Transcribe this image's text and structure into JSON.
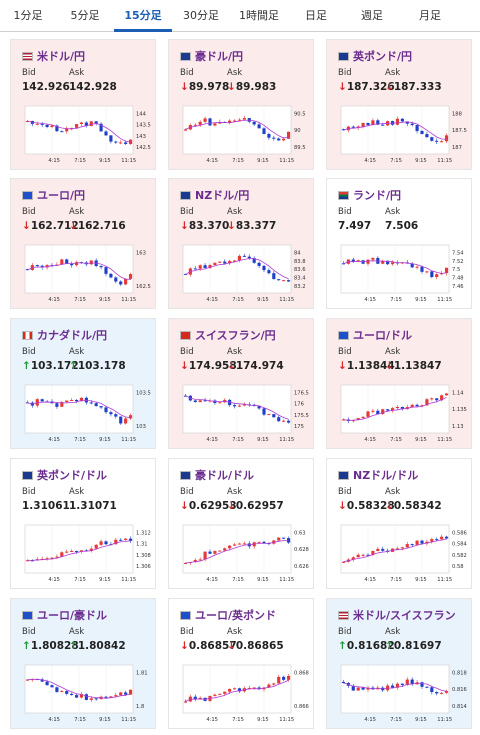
{
  "tabs": [
    {
      "label": "1分足",
      "active": false
    },
    {
      "label": "5分足",
      "active": false
    },
    {
      "label": "15分足",
      "active": true
    },
    {
      "label": "30分足",
      "active": false
    },
    {
      "label": "1時間足",
      "active": false
    },
    {
      "label": "日足",
      "active": false
    },
    {
      "label": "週足",
      "active": false
    },
    {
      "label": "月足",
      "active": false
    }
  ],
  "bid_label": "Bid",
  "ask_label": "Ask",
  "time_labels": [
    "4:15",
    "7:15",
    "9:15",
    "11:15"
  ],
  "colors": {
    "up": "#1d9a3a",
    "down": "#d62828",
    "candle_up": "#e53935",
    "candle_down": "#1e40c8",
    "ma": "#b23ad8",
    "title": "#6b2d8f",
    "tab_active": "#1a5fb4"
  },
  "pairs": [
    {
      "name": "米ドル/円",
      "flag": "us",
      "bg": "pink",
      "dir": "none",
      "bid": "142.926",
      "ask": "142.928",
      "y_ticks": [
        "144",
        "143.5",
        "143",
        "142.5"
      ],
      "chart_data": {
        "type": "candlestick",
        "ylim": [
          142.3,
          144.3
        ],
        "start": 143.6,
        "end": 142.9,
        "trend": "down",
        "shape": [
          0.3,
          0.4,
          0.35,
          0.5,
          0.45,
          0.4,
          0.35,
          0.3,
          0.5,
          0.8,
          0.9,
          0.7
        ]
      }
    },
    {
      "name": "豪ドル/円",
      "flag": "au",
      "bg": "pink",
      "dir": "down",
      "bid": "89.978",
      "ask": "89.983",
      "y_ticks": [
        "90.5",
        "90",
        "89.5"
      ],
      "chart_data": {
        "type": "candlestick",
        "ylim": [
          89.4,
          90.9
        ],
        "start": 90.2,
        "end": 89.98,
        "trend": "down",
        "shape": [
          0.5,
          0.3,
          0.25,
          0.35,
          0.3,
          0.25,
          0.2,
          0.3,
          0.5,
          0.7,
          0.75,
          0.6
        ]
      }
    },
    {
      "name": "英ポンド/円",
      "flag": "gb",
      "bg": "pink",
      "dir": "down",
      "bid": "187.326",
      "ask": "187.333",
      "y_ticks": [
        "188",
        "187.5",
        "187"
      ],
      "chart_data": {
        "type": "candlestick",
        "ylim": [
          186.6,
          188.3
        ],
        "start": 187.8,
        "end": 187.33,
        "trend": "down",
        "shape": [
          0.5,
          0.4,
          0.35,
          0.3,
          0.35,
          0.3,
          0.25,
          0.3,
          0.5,
          0.7,
          0.85,
          0.65
        ]
      }
    },
    {
      "name": "ユーロ/円",
      "flag": "eu",
      "bg": "pink",
      "dir": "down",
      "bid": "162.712",
      "ask": "162.716",
      "y_ticks": [
        "163",
        "162.5"
      ],
      "chart_data": {
        "type": "candlestick",
        "ylim": [
          162.1,
          163.4
        ],
        "start": 162.9,
        "end": 162.71,
        "trend": "down",
        "shape": [
          0.5,
          0.4,
          0.4,
          0.35,
          0.3,
          0.35,
          0.3,
          0.35,
          0.5,
          0.75,
          0.85,
          0.6
        ]
      }
    },
    {
      "name": "NZドル/円",
      "flag": "nz",
      "bg": "pink",
      "dir": "down",
      "bid": "83.370",
      "ask": "83.377",
      "y_ticks": [
        "84",
        "83.8",
        "83.6",
        "83.4",
        "83.2"
      ],
      "chart_data": {
        "type": "candlestick",
        "ylim": [
          83.1,
          84.1
        ],
        "start": 83.6,
        "end": 83.37,
        "trend": "down",
        "shape": [
          0.6,
          0.5,
          0.45,
          0.35,
          0.3,
          0.25,
          0.2,
          0.25,
          0.4,
          0.65,
          0.8,
          0.75
        ]
      }
    },
    {
      "name": "ランド/円",
      "flag": "za",
      "bg": "white",
      "dir": "none",
      "bid": "7.497",
      "ask": "7.506",
      "y_ticks": [
        "7.54",
        "7.52",
        "7.5",
        "7.48",
        "7.46"
      ],
      "chart_data": {
        "type": "candlestick",
        "ylim": [
          7.45,
          7.56
        ],
        "start": 7.51,
        "end": 7.5,
        "trend": "flat",
        "shape": [
          0.3,
          0.35,
          0.3,
          0.25,
          0.35,
          0.4,
          0.3,
          0.35,
          0.5,
          0.6,
          0.7,
          0.5
        ]
      }
    },
    {
      "name": "カナダドル/円",
      "flag": "ca",
      "bg": "blue",
      "dir": "up",
      "bid": "103.172",
      "ask": "103.178",
      "y_ticks": [
        "103.5",
        "103"
      ],
      "chart_data": {
        "type": "candlestick",
        "ylim": [
          102.6,
          104.2
        ],
        "start": 103.7,
        "end": 103.17,
        "trend": "down",
        "shape": [
          0.4,
          0.3,
          0.35,
          0.4,
          0.35,
          0.3,
          0.25,
          0.3,
          0.45,
          0.7,
          0.85,
          0.65
        ]
      }
    },
    {
      "name": "スイスフラン/円",
      "flag": "ch",
      "bg": "pink",
      "dir": "down",
      "bid": "174.958",
      "ask": "174.974",
      "y_ticks": [
        "176.5",
        "176",
        "175.5",
        "175"
      ],
      "chart_data": {
        "type": "candlestick",
        "ylim": [
          174.7,
          176.7
        ],
        "start": 176.1,
        "end": 174.96,
        "trend": "down",
        "shape": [
          0.2,
          0.25,
          0.3,
          0.35,
          0.3,
          0.35,
          0.4,
          0.45,
          0.55,
          0.7,
          0.85,
          0.8
        ]
      }
    },
    {
      "name": "ユーロ/ドル",
      "flag": "eu",
      "bg": "pink",
      "dir": "down",
      "bid": "1.13844",
      "ask": "1.13847",
      "y_ticks": [
        "1.14",
        "1.135",
        "1.13"
      ],
      "chart_data": {
        "type": "candlestick",
        "ylim": [
          1.128,
          1.142
        ],
        "start": 1.131,
        "end": 1.1384,
        "trend": "up",
        "shape": [
          0.8,
          0.75,
          0.7,
          0.6,
          0.55,
          0.5,
          0.5,
          0.45,
          0.4,
          0.3,
          0.2,
          0.15
        ]
      }
    },
    {
      "name": "英ポンド/ドル",
      "flag": "gb",
      "bg": "white",
      "dir": "none",
      "bid": "1.31061",
      "ask": "1.31071",
      "y_ticks": [
        "1.312",
        "1.31",
        "1.308",
        "1.306"
      ],
      "chart_data": {
        "type": "candlestick",
        "ylim": [
          1.305,
          1.313
        ],
        "start": 1.3065,
        "end": 1.3106,
        "trend": "up",
        "shape": [
          0.8,
          0.75,
          0.7,
          0.65,
          0.6,
          0.55,
          0.5,
          0.45,
          0.35,
          0.3,
          0.25,
          0.3
        ]
      }
    },
    {
      "name": "豪ドル/ドル",
      "flag": "au",
      "bg": "white",
      "dir": "down",
      "bid": "0.62953",
      "ask": "0.62957",
      "y_ticks": [
        "0.63",
        "0.628",
        "0.626"
      ],
      "chart_data": {
        "type": "candlestick",
        "ylim": [
          0.625,
          0.6315
        ],
        "start": 0.6262,
        "end": 0.6295,
        "trend": "up",
        "shape": [
          0.85,
          0.8,
          0.65,
          0.55,
          0.5,
          0.45,
          0.4,
          0.35,
          0.3,
          0.3,
          0.25,
          0.3
        ]
      }
    },
    {
      "name": "NZドル/ドル",
      "flag": "nz",
      "bg": "white",
      "dir": "down",
      "bid": "0.58328",
      "ask": "0.58342",
      "y_ticks": [
        "0.586",
        "0.584",
        "0.582",
        "0.58"
      ],
      "chart_data": {
        "type": "candlestick",
        "ylim": [
          0.5795,
          0.5865
        ],
        "start": 0.5805,
        "end": 0.5833,
        "trend": "up",
        "shape": [
          0.8,
          0.75,
          0.7,
          0.6,
          0.55,
          0.5,
          0.45,
          0.4,
          0.35,
          0.25,
          0.2,
          0.3
        ]
      }
    },
    {
      "name": "ユーロ/豪ドル",
      "flag": "eu",
      "bg": "blue",
      "dir": "up",
      "bid": "1.80828",
      "ask": "1.80842",
      "y_ticks": [
        "1.81",
        "1.8"
      ],
      "chart_data": {
        "type": "candlestick",
        "ylim": [
          1.798,
          1.8135
        ],
        "start": 1.812,
        "end": 1.8083,
        "trend": "down",
        "shape": [
          0.2,
          0.3,
          0.4,
          0.5,
          0.6,
          0.65,
          0.7,
          0.75,
          0.7,
          0.65,
          0.6,
          0.55
        ]
      }
    },
    {
      "name": "ユーロ/英ポンド",
      "flag": "eu",
      "bg": "white",
      "dir": "down",
      "bid": "0.86857",
      "ask": "0.86865",
      "y_ticks": [
        "0.868",
        "0.866"
      ],
      "chart_data": {
        "type": "candlestick",
        "ylim": [
          0.8648,
          0.8692
        ],
        "start": 0.8662,
        "end": 0.8686,
        "trend": "up",
        "shape": [
          0.75,
          0.7,
          0.8,
          0.65,
          0.55,
          0.5,
          0.55,
          0.4,
          0.45,
          0.35,
          0.25,
          0.15
        ]
      }
    },
    {
      "name": "米ドル/スイスフラン",
      "flag": "us",
      "bg": "blue",
      "dir": "up",
      "bid": "0.81682",
      "ask": "0.81697",
      "y_ticks": [
        "0.818",
        "0.816",
        "0.814"
      ],
      "chart_data": {
        "type": "candlestick",
        "ylim": [
          0.813,
          0.8195
        ],
        "start": 0.817,
        "end": 0.8168,
        "trend": "flat",
        "shape": [
          0.4,
          0.5,
          0.45,
          0.55,
          0.5,
          0.45,
          0.4,
          0.3,
          0.35,
          0.45,
          0.6,
          0.5
        ]
      }
    }
  ]
}
